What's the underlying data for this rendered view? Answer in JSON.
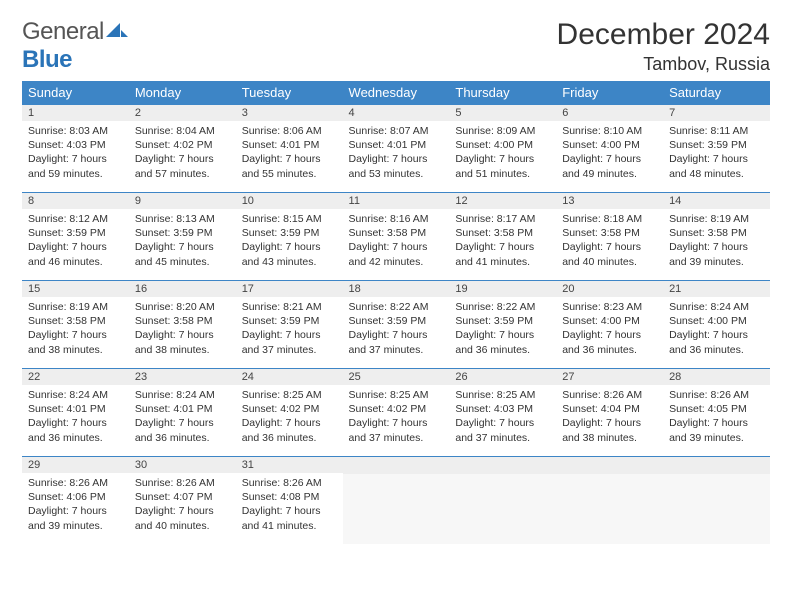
{
  "brand": {
    "word1": "General",
    "word2": "Blue",
    "color_gray": "#555555",
    "color_blue": "#2a74b8"
  },
  "title": "December 2024",
  "location": "Tambov, Russia",
  "header_bg": "#3d85c6",
  "header_text": "#ffffff",
  "rule_color": "#3d85c6",
  "daybar_bg": "#eeeeee",
  "weekdays": [
    "Sunday",
    "Monday",
    "Tuesday",
    "Wednesday",
    "Thursday",
    "Friday",
    "Saturday"
  ],
  "weeks": [
    [
      {
        "n": "1",
        "sr": "Sunrise: 8:03 AM",
        "ss": "Sunset: 4:03 PM",
        "dl": "Daylight: 7 hours and 59 minutes."
      },
      {
        "n": "2",
        "sr": "Sunrise: 8:04 AM",
        "ss": "Sunset: 4:02 PM",
        "dl": "Daylight: 7 hours and 57 minutes."
      },
      {
        "n": "3",
        "sr": "Sunrise: 8:06 AM",
        "ss": "Sunset: 4:01 PM",
        "dl": "Daylight: 7 hours and 55 minutes."
      },
      {
        "n": "4",
        "sr": "Sunrise: 8:07 AM",
        "ss": "Sunset: 4:01 PM",
        "dl": "Daylight: 7 hours and 53 minutes."
      },
      {
        "n": "5",
        "sr": "Sunrise: 8:09 AM",
        "ss": "Sunset: 4:00 PM",
        "dl": "Daylight: 7 hours and 51 minutes."
      },
      {
        "n": "6",
        "sr": "Sunrise: 8:10 AM",
        "ss": "Sunset: 4:00 PM",
        "dl": "Daylight: 7 hours and 49 minutes."
      },
      {
        "n": "7",
        "sr": "Sunrise: 8:11 AM",
        "ss": "Sunset: 3:59 PM",
        "dl": "Daylight: 7 hours and 48 minutes."
      }
    ],
    [
      {
        "n": "8",
        "sr": "Sunrise: 8:12 AM",
        "ss": "Sunset: 3:59 PM",
        "dl": "Daylight: 7 hours and 46 minutes."
      },
      {
        "n": "9",
        "sr": "Sunrise: 8:13 AM",
        "ss": "Sunset: 3:59 PM",
        "dl": "Daylight: 7 hours and 45 minutes."
      },
      {
        "n": "10",
        "sr": "Sunrise: 8:15 AM",
        "ss": "Sunset: 3:59 PM",
        "dl": "Daylight: 7 hours and 43 minutes."
      },
      {
        "n": "11",
        "sr": "Sunrise: 8:16 AM",
        "ss": "Sunset: 3:58 PM",
        "dl": "Daylight: 7 hours and 42 minutes."
      },
      {
        "n": "12",
        "sr": "Sunrise: 8:17 AM",
        "ss": "Sunset: 3:58 PM",
        "dl": "Daylight: 7 hours and 41 minutes."
      },
      {
        "n": "13",
        "sr": "Sunrise: 8:18 AM",
        "ss": "Sunset: 3:58 PM",
        "dl": "Daylight: 7 hours and 40 minutes."
      },
      {
        "n": "14",
        "sr": "Sunrise: 8:19 AM",
        "ss": "Sunset: 3:58 PM",
        "dl": "Daylight: 7 hours and 39 minutes."
      }
    ],
    [
      {
        "n": "15",
        "sr": "Sunrise: 8:19 AM",
        "ss": "Sunset: 3:58 PM",
        "dl": "Daylight: 7 hours and 38 minutes."
      },
      {
        "n": "16",
        "sr": "Sunrise: 8:20 AM",
        "ss": "Sunset: 3:58 PM",
        "dl": "Daylight: 7 hours and 38 minutes."
      },
      {
        "n": "17",
        "sr": "Sunrise: 8:21 AM",
        "ss": "Sunset: 3:59 PM",
        "dl": "Daylight: 7 hours and 37 minutes."
      },
      {
        "n": "18",
        "sr": "Sunrise: 8:22 AM",
        "ss": "Sunset: 3:59 PM",
        "dl": "Daylight: 7 hours and 37 minutes."
      },
      {
        "n": "19",
        "sr": "Sunrise: 8:22 AM",
        "ss": "Sunset: 3:59 PM",
        "dl": "Daylight: 7 hours and 36 minutes."
      },
      {
        "n": "20",
        "sr": "Sunrise: 8:23 AM",
        "ss": "Sunset: 4:00 PM",
        "dl": "Daylight: 7 hours and 36 minutes."
      },
      {
        "n": "21",
        "sr": "Sunrise: 8:24 AM",
        "ss": "Sunset: 4:00 PM",
        "dl": "Daylight: 7 hours and 36 minutes."
      }
    ],
    [
      {
        "n": "22",
        "sr": "Sunrise: 8:24 AM",
        "ss": "Sunset: 4:01 PM",
        "dl": "Daylight: 7 hours and 36 minutes."
      },
      {
        "n": "23",
        "sr": "Sunrise: 8:24 AM",
        "ss": "Sunset: 4:01 PM",
        "dl": "Daylight: 7 hours and 36 minutes."
      },
      {
        "n": "24",
        "sr": "Sunrise: 8:25 AM",
        "ss": "Sunset: 4:02 PM",
        "dl": "Daylight: 7 hours and 36 minutes."
      },
      {
        "n": "25",
        "sr": "Sunrise: 8:25 AM",
        "ss": "Sunset: 4:02 PM",
        "dl": "Daylight: 7 hours and 37 minutes."
      },
      {
        "n": "26",
        "sr": "Sunrise: 8:25 AM",
        "ss": "Sunset: 4:03 PM",
        "dl": "Daylight: 7 hours and 37 minutes."
      },
      {
        "n": "27",
        "sr": "Sunrise: 8:26 AM",
        "ss": "Sunset: 4:04 PM",
        "dl": "Daylight: 7 hours and 38 minutes."
      },
      {
        "n": "28",
        "sr": "Sunrise: 8:26 AM",
        "ss": "Sunset: 4:05 PM",
        "dl": "Daylight: 7 hours and 39 minutes."
      }
    ],
    [
      {
        "n": "29",
        "sr": "Sunrise: 8:26 AM",
        "ss": "Sunset: 4:06 PM",
        "dl": "Daylight: 7 hours and 39 minutes."
      },
      {
        "n": "30",
        "sr": "Sunrise: 8:26 AM",
        "ss": "Sunset: 4:07 PM",
        "dl": "Daylight: 7 hours and 40 minutes."
      },
      {
        "n": "31",
        "sr": "Sunrise: 8:26 AM",
        "ss": "Sunset: 4:08 PM",
        "dl": "Daylight: 7 hours and 41 minutes."
      },
      null,
      null,
      null,
      null
    ]
  ]
}
